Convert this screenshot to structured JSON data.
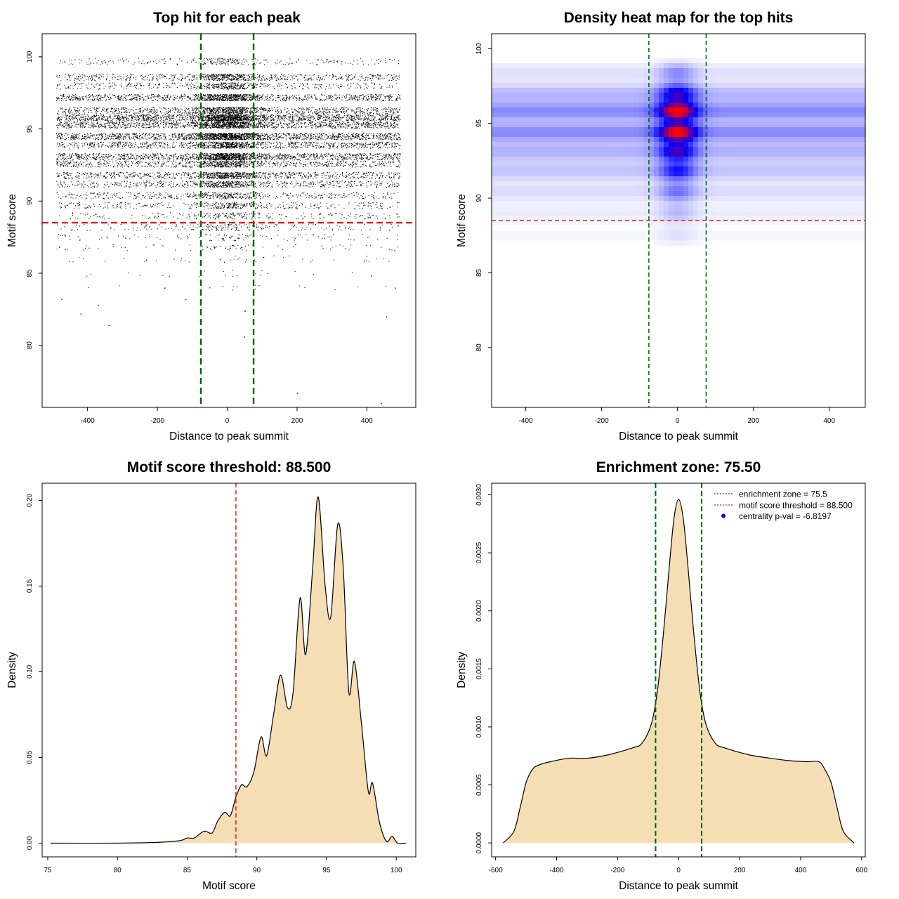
{
  "colors": {
    "threshold": "#e41a1c",
    "zone": "#006400",
    "density_fill": "#f5deb3",
    "heat_low": "#ffffff",
    "heat_mid": "#0000ff",
    "heat_high": "#ff0000",
    "pval_dot": "#0000ff"
  },
  "chart_data": [
    {
      "id": "scatter",
      "type": "scatter",
      "title": "Top hit for each peak",
      "xlabel": "Distance to peak summit",
      "ylabel": "Motif score",
      "xlim": [
        -530,
        540
      ],
      "ylim": [
        75.7,
        101.6
      ],
      "xticks": [
        "-400",
        "-200",
        "0",
        "200",
        "400"
      ],
      "yticks": [
        "80",
        "85",
        "90",
        "95",
        "100"
      ],
      "hlines": [
        88.5
      ],
      "vlines": [
        -75.5,
        75.5
      ],
      "x_range": [
        -490,
        495
      ],
      "score_bands": [
        {
          "y": 99.7,
          "w": 0.15
        },
        {
          "y": 98.6,
          "w": 0.45
        },
        {
          "y": 98.0,
          "w": 0.3
        },
        {
          "y": 97.2,
          "w": 0.75
        },
        {
          "y": 96.3,
          "w": 0.6
        },
        {
          "y": 95.8,
          "w": 1.0
        },
        {
          "y": 95.3,
          "w": 0.8
        },
        {
          "y": 94.5,
          "w": 1.0
        },
        {
          "y": 93.9,
          "w": 0.65
        },
        {
          "y": 93.1,
          "w": 0.85
        },
        {
          "y": 92.6,
          "w": 0.5
        },
        {
          "y": 91.8,
          "w": 0.55
        },
        {
          "y": 91.2,
          "w": 0.4
        },
        {
          "y": 90.4,
          "w": 0.3
        },
        {
          "y": 89.7,
          "w": 0.22
        },
        {
          "y": 89.0,
          "w": 0.15
        },
        {
          "y": 88.2,
          "w": 0.1
        },
        {
          "y": 87.5,
          "w": 0.07
        },
        {
          "y": 86.8,
          "w": 0.05
        },
        {
          "y": 86.0,
          "w": 0.03
        },
        {
          "y": 85.0,
          "w": 0.015
        },
        {
          "y": 84.0,
          "w": 0.008
        }
      ],
      "outliers": [
        {
          "x": -475,
          "y": 83.2
        },
        {
          "x": -420,
          "y": 82.2
        },
        {
          "x": -370,
          "y": 82.8
        },
        {
          "x": -340,
          "y": 81.4
        },
        {
          "x": 50,
          "y": 82.4
        },
        {
          "x": 48,
          "y": 80.6
        },
        {
          "x": 200,
          "y": 76.7
        },
        {
          "x": 440,
          "y": 76.0
        },
        {
          "x": 455,
          "y": 82.0
        },
        {
          "x": 480,
          "y": 84.0
        },
        {
          "x": -180,
          "y": 84.0
        },
        {
          "x": -120,
          "y": 83.2
        }
      ]
    },
    {
      "id": "heatmap",
      "type": "heatmap",
      "title": "Density heat map for the top hits",
      "xlabel": "Distance to peak summit",
      "ylabel": "Motif score",
      "xlim": [
        -490,
        495
      ],
      "ylim": [
        76.0,
        101.0
      ],
      "xticks": [
        "-400",
        "-200",
        "0",
        "200",
        "400"
      ],
      "yticks": [
        "80",
        "85",
        "90",
        "95",
        "100"
      ],
      "hlines": [
        88.5
      ],
      "vlines": [
        -75.5,
        75.5
      ],
      "score_bands": [
        {
          "y": 98.4,
          "w": 0.25
        },
        {
          "y": 97.0,
          "w": 0.6
        },
        {
          "y": 95.8,
          "w": 1.0
        },
        {
          "y": 94.4,
          "w": 1.0
        },
        {
          "y": 93.1,
          "w": 0.65
        },
        {
          "y": 91.8,
          "w": 0.5
        },
        {
          "y": 90.4,
          "w": 0.3
        },
        {
          "y": 89.0,
          "w": 0.15
        },
        {
          "y": 87.5,
          "w": 0.07
        }
      ],
      "center_peak": {
        "x": 0,
        "sd": 35
      }
    },
    {
      "id": "score-density",
      "type": "area",
      "title": "Motif score threshold: 88.500",
      "xlabel": "Motif score",
      "ylabel": "Density",
      "xlim": [
        74.6,
        101.4
      ],
      "ylim": [
        -0.008,
        0.21
      ],
      "xticks": [
        "75",
        "80",
        "85",
        "90",
        "95",
        "100"
      ],
      "yticks": [
        "0.00",
        "0.05",
        "0.10",
        "0.15",
        "0.20"
      ],
      "vlines": [
        88.5
      ],
      "x": [
        75.2,
        80,
        83,
        84.5,
        85,
        85.5,
        86,
        86.3,
        86.8,
        87.2,
        87.7,
        88.1,
        88.5,
        88.9,
        89.3,
        89.8,
        90.3,
        90.7,
        91.2,
        91.7,
        92.2,
        92.6,
        93.1,
        93.5,
        94.0,
        94.4,
        94.9,
        95.3,
        95.8,
        96.2,
        96.6,
        97.0,
        97.5,
        98.0,
        98.3,
        98.8,
        99.3,
        99.7,
        100.1,
        100.7
      ],
      "values": [
        0.0,
        0.0,
        0.0005,
        0.0015,
        0.003,
        0.003,
        0.006,
        0.007,
        0.006,
        0.013,
        0.018,
        0.016,
        0.027,
        0.034,
        0.033,
        0.042,
        0.062,
        0.051,
        0.075,
        0.098,
        0.079,
        0.088,
        0.143,
        0.11,
        0.16,
        0.202,
        0.15,
        0.132,
        0.186,
        0.16,
        0.088,
        0.106,
        0.07,
        0.03,
        0.035,
        0.012,
        0.001,
        0.004,
        0.0,
        0.0
      ]
    },
    {
      "id": "distance-density",
      "type": "area",
      "title": "Enrichment zone: 75.50",
      "xlabel": "Distance to peak summit",
      "ylabel": "Density",
      "xlim": [
        -613,
        612
      ],
      "ylim": [
        -0.00012,
        0.0031
      ],
      "xticks": [
        "-600",
        "-400",
        "-200",
        "0",
        "200",
        "400",
        "600"
      ],
      "yticks": [
        "0.0000",
        "0.0005",
        "0.0010",
        "0.0015",
        "0.0020",
        "0.0025",
        "0.0030"
      ],
      "vlines": [
        -75.5,
        75.5
      ],
      "x": [
        -575,
        -540,
        -520,
        -500,
        -480,
        -460,
        -420,
        -360,
        -300,
        -230,
        -150,
        -120,
        -90,
        -70,
        -50,
        -30,
        -15,
        0,
        15,
        30,
        50,
        70,
        90,
        120,
        150,
        230,
        300,
        360,
        420,
        460,
        480,
        500,
        520,
        540,
        575
      ],
      "values": [
        0.0,
        0.0001,
        0.0003,
        0.00052,
        0.00063,
        0.00067,
        0.0007,
        0.00073,
        0.00073,
        0.00076,
        0.00082,
        0.00086,
        0.00102,
        0.0013,
        0.0018,
        0.0024,
        0.0028,
        0.00296,
        0.0028,
        0.0024,
        0.0018,
        0.0013,
        0.00102,
        0.00086,
        0.00082,
        0.00076,
        0.00073,
        0.00071,
        0.0007,
        0.0007,
        0.00063,
        0.00052,
        0.0003,
        0.0001,
        0.0
      ],
      "legend": {
        "position": "top-right",
        "entries": [
          {
            "label": "enrichment zone = 75.5",
            "style": "dotted-line",
            "color": "#006400"
          },
          {
            "label": "motif score threshold = 88.500",
            "style": "dotted-line",
            "color": "#e41a1c"
          },
          {
            "label": "centrality p-val = -6.8197",
            "style": "dot",
            "color": "#0000ff"
          }
        ]
      }
    }
  ]
}
